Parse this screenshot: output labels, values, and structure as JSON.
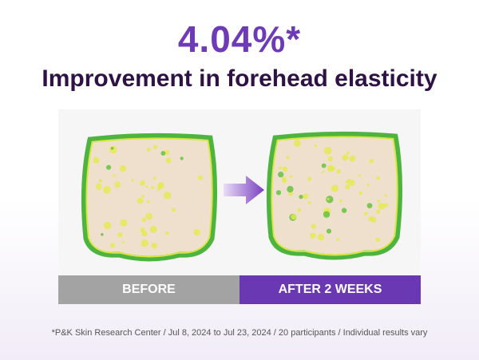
{
  "headline": {
    "value": "4.04%*",
    "subtitle": "Improvement in forehead elasticity"
  },
  "panels": [
    {
      "label": "BEFORE"
    },
    {
      "label": "AFTER 2 WEEKS"
    }
  ],
  "footnote": "*P&K Skin Research Center / Jul 8, 2024 to Jul 23, 2024 / 20 participants / Individual results vary"
}
